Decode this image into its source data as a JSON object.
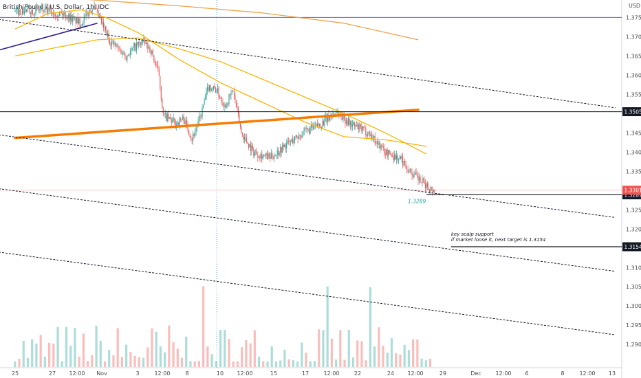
{
  "chart_data": {
    "type": "candlestick",
    "title": "British Pound / U.S. Dollar, 1h, IDC",
    "currency": "USD",
    "y_range": [
      1.287,
      1.379
    ],
    "y_ticks": [
      1.375,
      1.37,
      1.365,
      1.36,
      1.355,
      1.345,
      1.34,
      1.335,
      1.325,
      1.32,
      1.31,
      1.305,
      1.3,
      1.295,
      1.29
    ],
    "x_ticks": [
      "25",
      "27",
      "12:00",
      "Nov",
      "3",
      "12:00",
      "8",
      "10",
      "12:00",
      "15",
      "17",
      "12:00",
      "22",
      "24",
      "12:00",
      "29",
      "Dec",
      "12:00",
      "6",
      "8",
      "12:00",
      "13"
    ],
    "price_path": [
      [
        0,
        1.3765
      ],
      [
        6,
        1.377
      ],
      [
        12,
        1.3758
      ],
      [
        16,
        1.3735
      ],
      [
        19,
        1.378
      ],
      [
        23,
        1.369
      ],
      [
        27,
        1.365
      ],
      [
        29,
        1.3672
      ],
      [
        31,
        1.3688
      ],
      [
        33,
        1.3665
      ],
      [
        35,
        1.36
      ],
      [
        36,
        1.3495
      ],
      [
        39,
        1.3475
      ],
      [
        41,
        1.3488
      ],
      [
        43,
        1.3435
      ],
      [
        45,
        1.349
      ],
      [
        47,
        1.357
      ],
      [
        49,
        1.3562
      ],
      [
        51,
        1.352
      ],
      [
        53,
        1.356
      ],
      [
        55,
        1.345
      ],
      [
        58,
        1.34
      ],
      [
        62,
        1.3385
      ],
      [
        66,
        1.342
      ],
      [
        70,
        1.345
      ],
      [
        74,
        1.347
      ],
      [
        78,
        1.3505
      ],
      [
        82,
        1.347
      ],
      [
        86,
        1.345
      ],
      [
        90,
        1.34
      ],
      [
        94,
        1.338
      ],
      [
        96,
        1.335
      ],
      [
        97,
        1.334
      ],
      [
        99,
        1.332
      ],
      [
        101,
        1.3305
      ],
      [
        102,
        1.3301
      ]
    ],
    "last_price": "1.3301",
    "levels": [
      {
        "label": "1.3505",
        "value": 1.3505,
        "color": "#131722"
      },
      {
        "label": "1.3289",
        "value": 1.3289,
        "color": "#131722"
      },
      {
        "label": "1.3154",
        "value": 1.3154,
        "color": "#131722"
      }
    ],
    "purple_level": {
      "value": 1.375,
      "color": "#7e57c2"
    },
    "price_label_color": "#ef5350",
    "support_label": "1.3289",
    "annotation": [
      "key scalp support",
      "if market loose it, next target is 1.3154"
    ],
    "moving_averages": [
      {
        "color": "#f7b500",
        "points": [
          [
            0,
            1.372
          ],
          [
            8,
            1.376
          ],
          [
            16,
            1.377
          ],
          [
            22,
            1.375
          ],
          [
            30,
            1.371
          ],
          [
            40,
            1.364
          ],
          [
            50,
            1.358
          ],
          [
            60,
            1.353
          ],
          [
            70,
            1.348
          ],
          [
            80,
            1.344
          ],
          [
            90,
            1.3432
          ],
          [
            100,
            1.3415
          ]
        ]
      },
      {
        "color": "#f7b500",
        "points": [
          [
            0,
            1.365
          ],
          [
            10,
            1.3672
          ],
          [
            20,
            1.3692
          ],
          [
            30,
            1.3697
          ],
          [
            40,
            1.3668
          ],
          [
            50,
            1.3635
          ],
          [
            60,
            1.359
          ],
          [
            70,
            1.3545
          ],
          [
            80,
            1.35
          ],
          [
            90,
            1.345
          ],
          [
            100,
            1.3395
          ]
        ]
      },
      {
        "color": "#f0a04b",
        "points": [
          [
            0,
            1.3808
          ],
          [
            20,
            1.3795
          ],
          [
            40,
            1.378
          ],
          [
            60,
            1.3762
          ],
          [
            80,
            1.3735
          ],
          [
            98,
            1.3692
          ]
        ]
      }
    ],
    "trend_lines": [
      {
        "color": "#f57c00",
        "style": "thick",
        "points": [
          [
            0,
            1.3437
          ],
          [
            98,
            1.351
          ]
        ]
      },
      {
        "color": "#131722",
        "style": "dashed",
        "points": [
          [
            -4,
            1.3745
          ],
          [
            146,
            1.3515
          ]
        ]
      },
      {
        "color": "#131722",
        "style": "dashed",
        "points": [
          [
            -4,
            1.3445
          ],
          [
            146,
            1.323
          ]
        ]
      },
      {
        "color": "#131722",
        "style": "dashed",
        "points": [
          [
            -4,
            1.3305
          ],
          [
            146,
            1.309
          ]
        ]
      },
      {
        "color": "#131722",
        "style": "dashed",
        "points": [
          [
            -4,
            1.314
          ],
          [
            146,
            1.2925
          ]
        ]
      },
      {
        "color": "#311b92",
        "style": "solid",
        "points": [
          [
            -4,
            1.3665
          ],
          [
            20,
            1.3735
          ]
        ]
      },
      {
        "color": "#311b92",
        "style": "solid",
        "points": [
          [
            58,
            1.3815
          ],
          [
            77,
            1.3802
          ]
        ]
      }
    ],
    "vline_x": 49,
    "volume": {
      "count": 98,
      "max_height": 0.55
    }
  }
}
